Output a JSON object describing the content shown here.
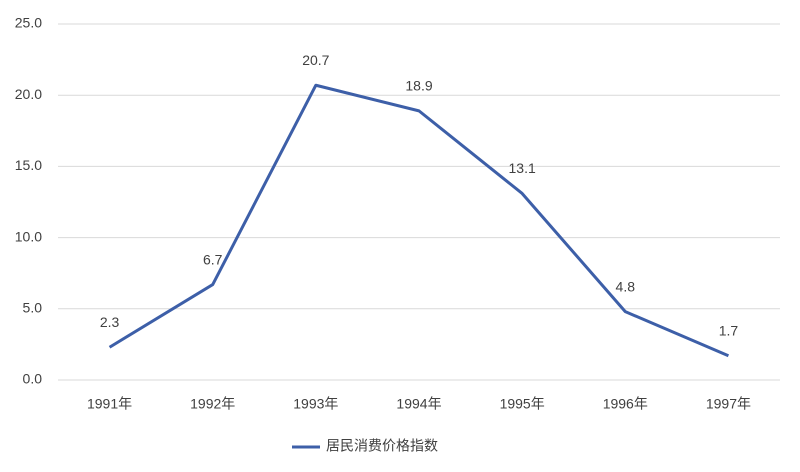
{
  "chart_data": {
    "type": "line",
    "categories": [
      "1991年",
      "1992年",
      "1993年",
      "1994年",
      "1995年",
      "1996年",
      "1997年"
    ],
    "series": [
      {
        "name": "居民消费价格指数",
        "color": "#3d5fa8",
        "values": [
          2.3,
          6.7,
          20.7,
          18.9,
          13.1,
          4.8,
          1.7
        ]
      }
    ],
    "ylim": [
      0,
      25
    ],
    "yticks": [
      {
        "value": 0,
        "label": "0.0"
      },
      {
        "value": 5,
        "label": "5.0"
      },
      {
        "value": 10,
        "label": "10.0"
      },
      {
        "value": 15,
        "label": "15.0"
      },
      {
        "value": 20,
        "label": "20.0"
      },
      {
        "value": 25,
        "label": "25.0"
      }
    ],
    "grid": true,
    "data_labels": true,
    "legend": "bottom"
  }
}
